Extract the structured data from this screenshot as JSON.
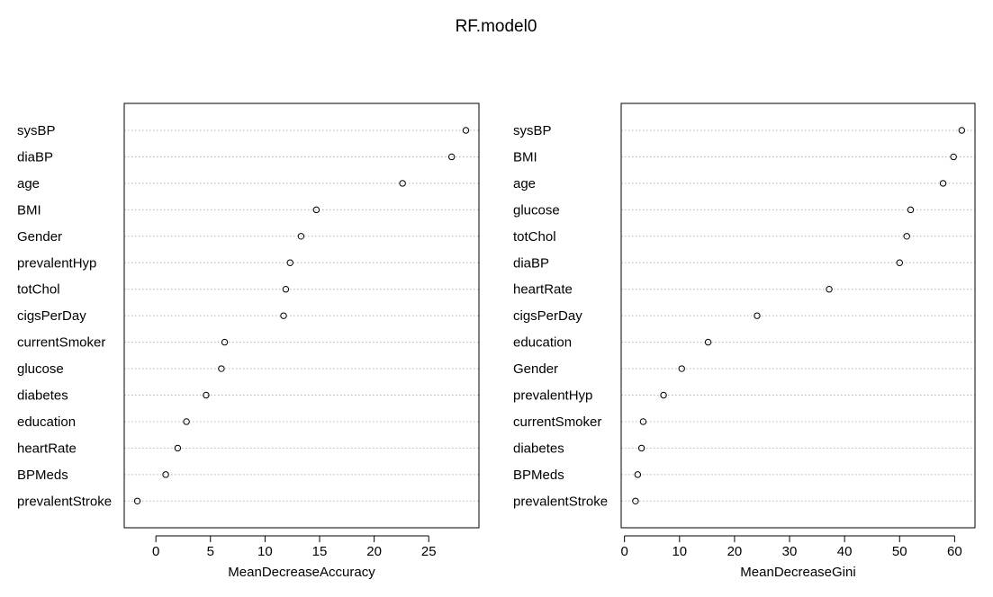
{
  "chart_data": {
    "title": "RF.model0",
    "panels": [
      {
        "type": "scatter",
        "style": "dotchart",
        "xlabel": "MeanDecreaseAccuracy",
        "xlim": [
          -2.9,
          29.6
        ],
        "ticks": [
          0,
          5,
          10,
          15,
          20,
          25
        ],
        "grid": "dotted horizontal",
        "categories": [
          "sysBP",
          "diaBP",
          "age",
          "BMI",
          "Gender",
          "prevalentHyp",
          "totChol",
          "cigsPerDay",
          "currentSmoker",
          "glucose",
          "diabetes",
          "education",
          "heartRate",
          "BPMeds",
          "prevalentStroke"
        ],
        "values": [
          28.4,
          27.1,
          22.6,
          14.7,
          13.3,
          12.3,
          11.9,
          11.7,
          6.3,
          6.0,
          4.6,
          2.8,
          2.0,
          0.9,
          -1.7
        ]
      },
      {
        "type": "scatter",
        "style": "dotchart",
        "xlabel": "MeanDecreaseGini",
        "xlim": [
          -0.6,
          63.7
        ],
        "ticks": [
          0,
          10,
          20,
          30,
          40,
          50,
          60
        ],
        "grid": "dotted horizontal",
        "categories": [
          "sysBP",
          "BMI",
          "age",
          "glucose",
          "totChol",
          "diaBP",
          "heartRate",
          "cigsPerDay",
          "education",
          "Gender",
          "prevalentHyp",
          "currentSmoker",
          "diabetes",
          "BPMeds",
          "prevalentStroke"
        ],
        "values": [
          61.3,
          59.8,
          57.9,
          52.0,
          51.3,
          50.0,
          37.2,
          24.1,
          15.2,
          10.4,
          7.1,
          3.4,
          3.1,
          2.4,
          2.0
        ]
      }
    ]
  }
}
